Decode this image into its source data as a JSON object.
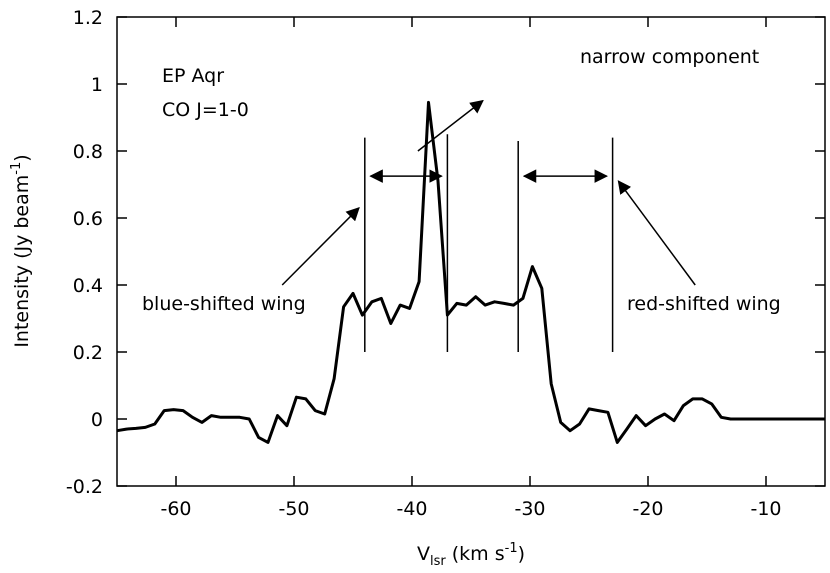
{
  "chart_data": {
    "type": "line",
    "title_lines": [
      "EP Aqr",
      "CO J=1-0"
    ],
    "xlabel": {
      "main": "V",
      "sub": "lsr",
      "unit_pre": " (km s",
      "unit_sup": "-1",
      "unit_post": ")"
    },
    "ylabel": {
      "main": "Intensity (Jy beam",
      "sup": "-1",
      "post": ")"
    },
    "xlim": [
      -65,
      -5
    ],
    "ylim": [
      -0.2,
      1.2
    ],
    "xticks": [
      -60,
      -50,
      -40,
      -30,
      -20,
      -10
    ],
    "xtick_labels": [
      "-60",
      "-50",
      "-40",
      "-30",
      "-20",
      "-10"
    ],
    "yticks": [
      -0.2,
      0,
      0.2,
      0.4,
      0.6,
      0.8,
      1,
      1.2
    ],
    "ytick_labels": [
      "-0.2",
      "0",
      "0.2",
      "0.4",
      "0.6",
      "0.8",
      "1",
      "1.2"
    ],
    "grid": false,
    "series": [
      {
        "x": [
          -65.0,
          -64.2,
          -63.4,
          -62.6,
          -61.8,
          -61.0,
          -60.2,
          -59.4,
          -58.6,
          -57.8,
          -57.0,
          -56.2,
          -55.4,
          -54.6,
          -53.8,
          -53.0,
          -52.2,
          -51.4,
          -50.6,
          -49.8,
          -49.0,
          -48.2,
          -47.4,
          -46.6,
          -45.8,
          -45.0,
          -44.2,
          -43.4,
          -42.6,
          -41.8,
          -41.0,
          -40.2,
          -39.4,
          -38.6,
          -37.8,
          -37.0,
          -36.2,
          -35.4,
          -34.6,
          -33.8,
          -33.0,
          -32.2,
          -31.4,
          -30.6,
          -29.8,
          -29.0,
          -28.2,
          -27.4,
          -26.6,
          -25.8,
          -25.0,
          -24.2,
          -23.4,
          -22.6,
          -21.8,
          -21.0,
          -20.2,
          -19.4,
          -18.6,
          -17.8,
          -17.0,
          -16.2,
          -15.4,
          -14.6,
          -13.8,
          -13.0,
          -12.2,
          -11.4,
          -10.6,
          -9.8,
          -9.0,
          -8.2,
          -7.4,
          -6.6,
          -5.8,
          -5.0
        ],
        "y": [
          -0.035,
          -0.03,
          -0.028,
          -0.025,
          -0.015,
          0.025,
          0.028,
          0.025,
          0.005,
          -0.01,
          0.01,
          0.005,
          0.005,
          0.005,
          0.0,
          -0.055,
          -0.07,
          0.01,
          -0.02,
          0.065,
          0.06,
          0.025,
          0.015,
          0.12,
          0.335,
          0.375,
          0.31,
          0.35,
          0.36,
          0.285,
          0.34,
          0.33,
          0.41,
          0.945,
          0.71,
          0.31,
          0.345,
          0.34,
          0.365,
          0.34,
          0.35,
          0.345,
          0.34,
          0.36,
          0.455,
          0.39,
          0.105,
          -0.01,
          -0.035,
          -0.015,
          0.03,
          0.025,
          0.02,
          -0.07,
          -0.03,
          0.01,
          -0.02,
          0.0,
          0.015,
          -0.005,
          0.04,
          0.06,
          0.06,
          0.045,
          0.005,
          0.0,
          0.0,
          0.0,
          0.0,
          0.0,
          0.0,
          0.0,
          0.0,
          0.0,
          0.0,
          0.0
        ]
      }
    ],
    "annotations": {
      "narrow": "narrow component",
      "blue": "blue-shifted wing",
      "red": "red-shifted wing"
    },
    "markers": {
      "vlines": [
        {
          "x": -44.0,
          "y0": 0.2,
          "y1": 0.84
        },
        {
          "x": -37.0,
          "y0": 0.2,
          "y1": 0.85
        },
        {
          "x": -31.0,
          "y0": 0.2,
          "y1": 0.83
        },
        {
          "x": -23.0,
          "y0": 0.2,
          "y1": 0.84
        }
      ],
      "double_arrows": [
        {
          "x1": -43.5,
          "x2": -37.5,
          "y": 0.725
        },
        {
          "x1": -30.5,
          "x2": -23.5,
          "y": 0.725
        }
      ],
      "pointer_arrows": [
        {
          "from": [
            -39.5,
            0.8
          ],
          "to": [
            -34.0,
            0.95
          ],
          "comment": "narrow"
        },
        {
          "from": [
            -51.0,
            0.4
          ],
          "to": [
            -44.5,
            0.63
          ],
          "comment": "blue"
        },
        {
          "from": [
            -16.0,
            0.4
          ],
          "to": [
            -22.5,
            0.71
          ],
          "comment": "red"
        }
      ]
    }
  }
}
